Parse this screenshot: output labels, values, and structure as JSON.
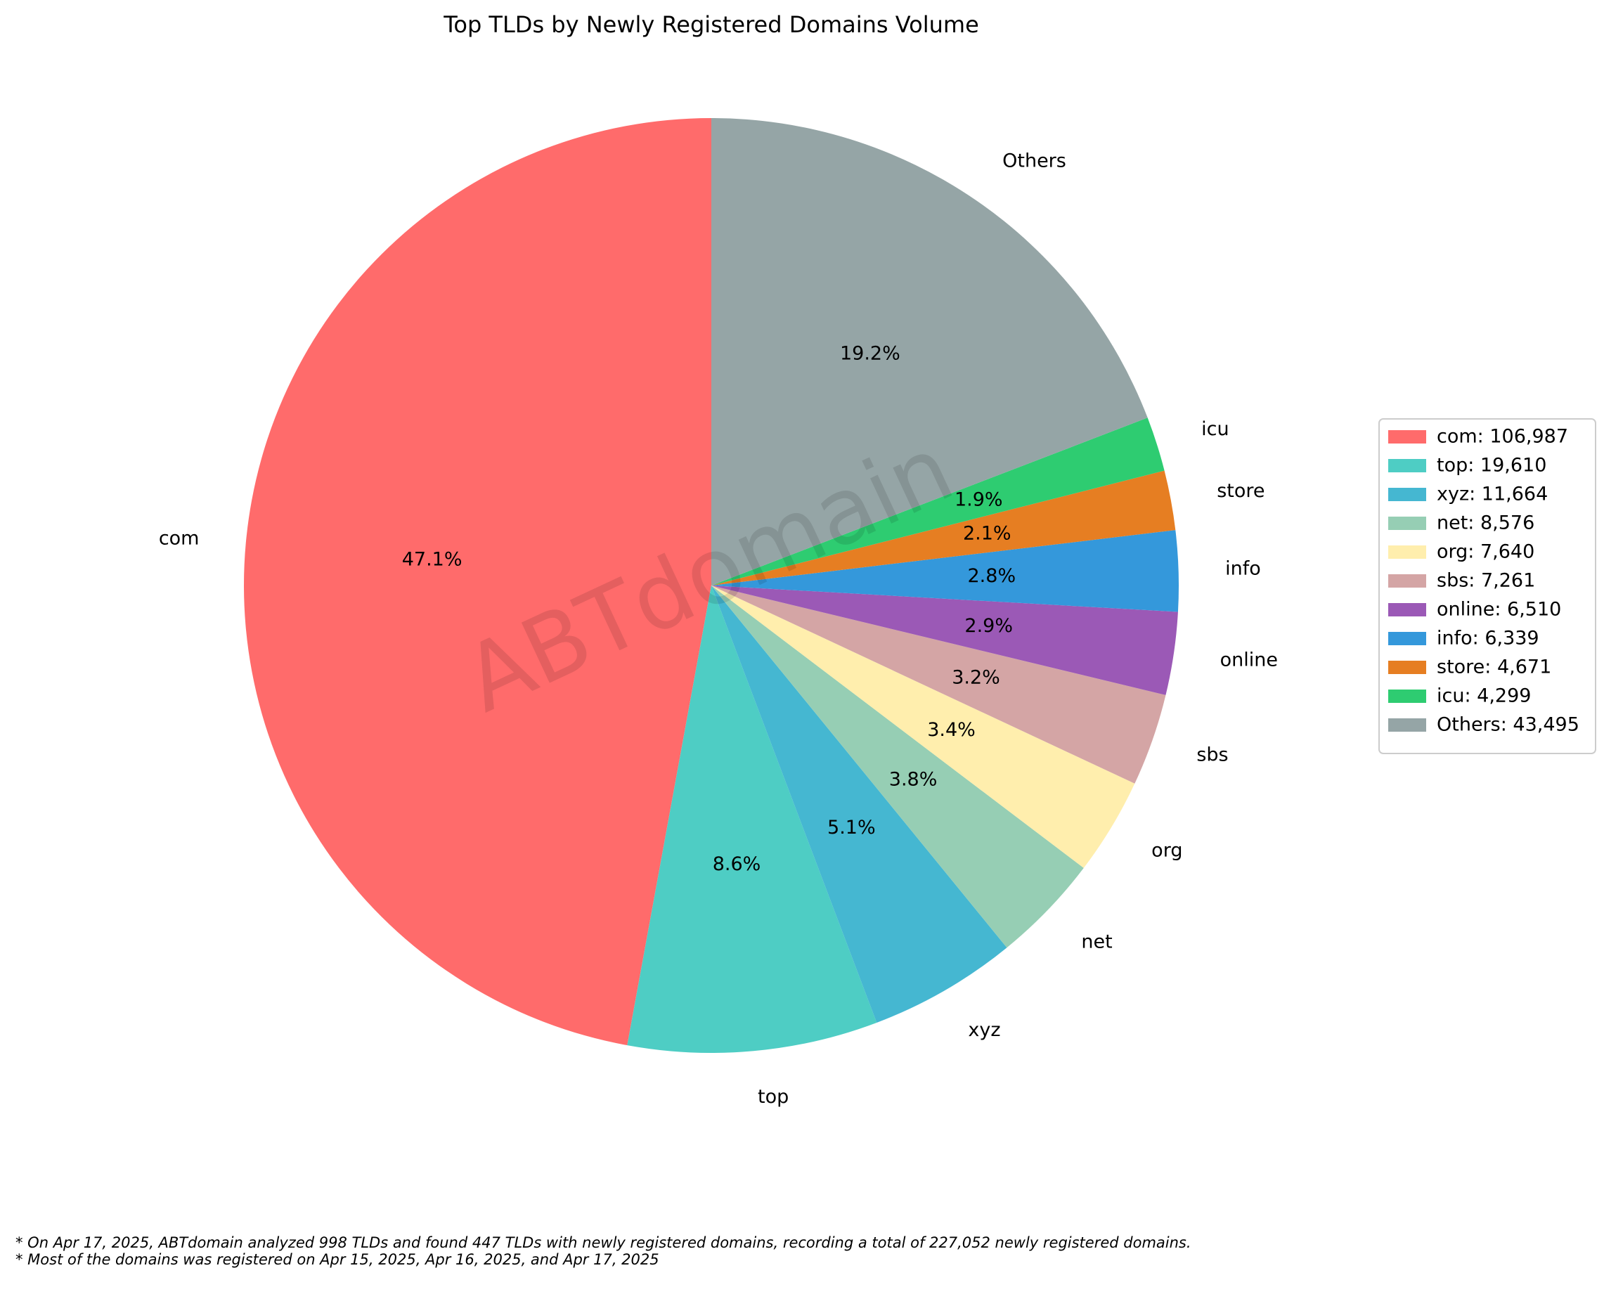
{
  "chart_data": {
    "type": "pie",
    "title": "Top TLDs by Newly Registered Domains Volume",
    "start_angle_deg": 90,
    "direction": "counterclockwise",
    "slices": [
      {
        "label": "com",
        "value": 106987,
        "pct": "47.1%",
        "legend": "com: 106,987",
        "color": "#FF6B6B"
      },
      {
        "label": "top",
        "value": 19610,
        "pct": "8.6%",
        "legend": "top: 19,610",
        "color": "#4ECDC4"
      },
      {
        "label": "xyz",
        "value": 11664,
        "pct": "5.1%",
        "legend": "xyz: 11,664",
        "color": "#45B7D1"
      },
      {
        "label": "net",
        "value": 8576,
        "pct": "3.8%",
        "legend": "net: 8,576",
        "color": "#96CEB4"
      },
      {
        "label": "org",
        "value": 7640,
        "pct": "3.4%",
        "legend": "org: 7,640",
        "color": "#FFEEAD"
      },
      {
        "label": "sbs",
        "value": 7261,
        "pct": "3.2%",
        "legend": "sbs: 7,261",
        "color": "#D4A5A5"
      },
      {
        "label": "online",
        "value": 6510,
        "pct": "2.9%",
        "legend": "online: 6,510",
        "color": "#9B59B6"
      },
      {
        "label": "info",
        "value": 6339,
        "pct": "2.8%",
        "legend": "info: 6,339",
        "color": "#3498DB"
      },
      {
        "label": "store",
        "value": 4671,
        "pct": "2.1%",
        "legend": "store: 4,671",
        "color": "#E67E22"
      },
      {
        "label": "icu",
        "value": 4299,
        "pct": "1.9%",
        "legend": "icu: 4,299",
        "color": "#2ECC71"
      },
      {
        "label": "Others",
        "value": 43495,
        "pct": "19.2%",
        "legend": "Others: 43,495",
        "color": "#95A5A6"
      }
    ],
    "legend_placement": "right",
    "watermark": "ABTdomain"
  },
  "footnotes": [
    "* On Apr 17, 2025, ABTdomain analyzed 998 TLDs and found 447 TLDs with newly registered domains, recording a total of 227,052 newly registered domains.",
    "* Most of the domains was registered on Apr 15, 2025, Apr 16, 2025, and Apr 17, 2025"
  ]
}
